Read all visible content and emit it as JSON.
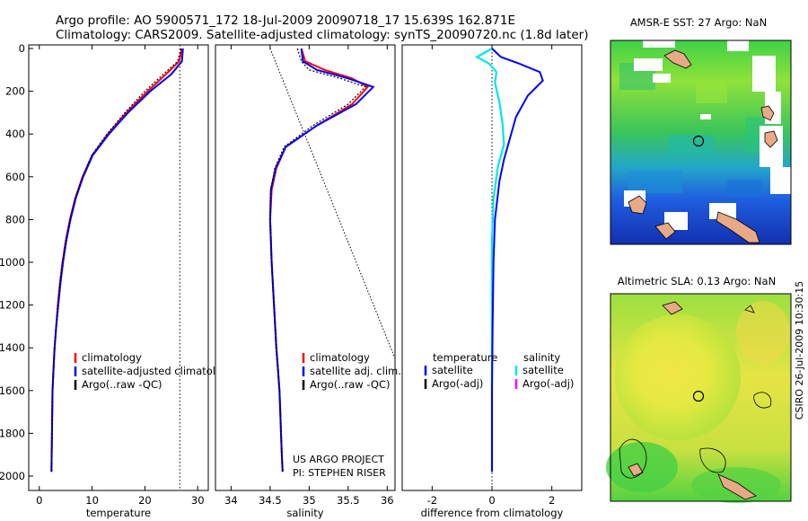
{
  "title_line1": "Argo profile: AO 5900571_172 18-Jul-2009 20090718_17 15.639S 162.871E",
  "title_line2": "Climatology: CARS2009. Satellite-adjusted climatology: synTS_20090720.nc (1.8d later)",
  "credit_project": "US ARGO PROJECT",
  "credit_pi": "PI: STEPHEN RISER",
  "side_stamp": "CSIRO 26-Jul-2009 10:30:15",
  "colors": {
    "climatology": "#ff0000",
    "satellite": "#0000ff",
    "argo": "#000000",
    "temp_diff": "#0000ff",
    "sal_diff": "#00e5ee",
    "argo_adj": "#ff00ff"
  },
  "chart_data": [
    {
      "type": "line",
      "xlabel": "temperature",
      "xlim": [
        -2,
        32
      ],
      "ylim": [
        0,
        2000
      ],
      "y_reversed": true,
      "xticks": [
        0,
        10,
        20,
        30
      ],
      "yticks": [
        0,
        200,
        400,
        600,
        800,
        1000,
        1200,
        1400,
        1600,
        1800,
        2000
      ],
      "reference_line_x": 26.6,
      "legend": [
        "climatology",
        "satellite-adjusted climatology",
        "Argo(..raw -QC)"
      ],
      "series": [
        {
          "name": "climatology",
          "x": [
            27.0,
            26.5,
            24.0,
            20.5,
            16.5,
            13.0,
            10.0,
            8.2,
            6.8,
            5.8,
            5.0,
            4.4,
            3.9,
            3.5,
            3.2,
            2.9,
            2.7,
            2.5,
            2.4,
            2.3
          ],
          "y": [
            0,
            60,
            120,
            200,
            300,
            400,
            500,
            600,
            700,
            800,
            900,
            1000,
            1100,
            1200,
            1300,
            1400,
            1500,
            1600,
            1800,
            1980
          ]
        },
        {
          "name": "satellite-adjusted climatology",
          "x": [
            27.2,
            27.0,
            25.0,
            21.0,
            16.8,
            13.2,
            10.1,
            8.3,
            6.9,
            5.9,
            5.1,
            4.5,
            4.0,
            3.6,
            3.2,
            2.9,
            2.7,
            2.5,
            2.4,
            2.3
          ],
          "y": [
            0,
            60,
            120,
            200,
            300,
            400,
            500,
            600,
            700,
            800,
            900,
            1000,
            1100,
            1200,
            1300,
            1400,
            1500,
            1600,
            1800,
            1980
          ]
        },
        {
          "name": "Argo(..raw -QC)",
          "x": [
            26.8,
            26.2,
            23.5,
            20.0,
            16.2,
            12.8,
            9.9,
            8.2,
            6.8,
            5.8,
            5.0,
            4.4,
            3.9,
            3.5,
            3.2,
            2.9,
            2.7,
            2.5,
            2.4,
            2.3
          ],
          "y": [
            0,
            60,
            120,
            200,
            300,
            400,
            500,
            600,
            700,
            800,
            900,
            1000,
            1100,
            1200,
            1300,
            1400,
            1500,
            1600,
            1800,
            1980
          ]
        }
      ]
    },
    {
      "type": "line",
      "xlabel": "salinity",
      "xlim": [
        33.8,
        36.1
      ],
      "ylim": [
        0,
        2000
      ],
      "y_reversed": true,
      "xticks": [
        34,
        34.5,
        35,
        35.5,
        36
      ],
      "legend": [
        "climatology",
        "satellite adj. clim.",
        "Argo(..raw -QC)"
      ],
      "diagonal_line": {
        "x": [
          34.5,
          36.1
        ],
        "y": [
          0,
          1450
        ]
      },
      "series": [
        {
          "name": "climatology",
          "x": [
            34.9,
            34.95,
            35.2,
            35.55,
            35.75,
            35.55,
            35.1,
            34.7,
            34.58,
            34.52,
            34.5,
            34.52,
            34.55,
            34.58,
            34.6,
            34.62,
            34.63,
            34.64,
            34.65,
            34.66
          ],
          "y": [
            0,
            60,
            100,
            140,
            180,
            260,
            360,
            460,
            560,
            660,
            800,
            1000,
            1200,
            1400,
            1500,
            1600,
            1700,
            1800,
            1900,
            1980
          ]
        },
        {
          "name": "satellite adj. clim.",
          "x": [
            34.9,
            34.92,
            35.1,
            35.5,
            35.82,
            35.6,
            35.1,
            34.7,
            34.57,
            34.51,
            34.5,
            34.52,
            34.55,
            34.58,
            34.6,
            34.62,
            34.63,
            34.64,
            34.65,
            34.66
          ],
          "y": [
            0,
            60,
            100,
            140,
            180,
            260,
            360,
            460,
            560,
            660,
            800,
            1000,
            1200,
            1400,
            1500,
            1600,
            1700,
            1800,
            1900,
            1980
          ]
        },
        {
          "name": "Argo(..raw -QC)",
          "x": [
            34.85,
            34.9,
            35.0,
            35.4,
            35.72,
            35.5,
            35.05,
            34.68,
            34.56,
            34.51,
            34.5,
            34.52,
            34.55,
            34.58,
            34.6,
            34.62,
            34.63,
            34.64,
            34.65,
            34.66
          ],
          "y": [
            0,
            60,
            100,
            140,
            180,
            260,
            360,
            460,
            560,
            660,
            800,
            1000,
            1200,
            1400,
            1500,
            1600,
            1700,
            1800,
            1900,
            1980
          ]
        }
      ]
    },
    {
      "type": "line",
      "xlabel": "difference from climatology",
      "xlim": [
        -3,
        3
      ],
      "ylim": [
        0,
        2000
      ],
      "y_reversed": true,
      "xticks": [
        -2,
        0,
        2
      ],
      "legend_temperature_header": "temperature",
      "legend_salinity_header": "salinity",
      "legend_temperature": [
        "satellite",
        "Argo(-adj)"
      ],
      "legend_salinity": [
        "satellite",
        "Argo(-adj)"
      ],
      "series": [
        {
          "name": "satellite",
          "group": "temperature",
          "x": [
            0.0,
            0.3,
            0.9,
            1.6,
            1.7,
            1.2,
            0.8,
            0.6,
            0.4,
            0.25,
            0.1,
            0.05,
            0.02,
            0.0,
            0.0,
            0.0
          ],
          "y": [
            0,
            40,
            70,
            110,
            150,
            220,
            320,
            420,
            520,
            620,
            800,
            1000,
            1300,
            1600,
            1800,
            1980
          ]
        },
        {
          "name": "satellite",
          "group": "salinity",
          "x": [
            0.0,
            -0.5,
            -0.1,
            0.15,
            0.1,
            0.25,
            0.35,
            0.4,
            0.2,
            0.05,
            0.0,
            0.0,
            0.0,
            0.0,
            0.0
          ],
          "y": [
            0,
            40,
            70,
            110,
            160,
            250,
            350,
            450,
            550,
            700,
            900,
            1200,
            1500,
            1800,
            1980
          ]
        }
      ]
    },
    {
      "type": "heatmap",
      "title": "AMSR-E SST: 27 Argo: NaN",
      "xlim": [
        157.5,
        168
      ],
      "ylim": [
        -21.5,
        -9.7
      ],
      "xticks": [
        158,
        160,
        162,
        164,
        166,
        168
      ],
      "yticks": [
        -10,
        -12,
        -14,
        -16,
        -18,
        -20
      ],
      "marker": {
        "lon": 162.871,
        "lat": -15.639
      }
    },
    {
      "type": "heatmap",
      "title": "Altimetric SLA: 0.13 Argo: NaN",
      "xlim": [
        157.5,
        168
      ],
      "ylim": [
        -21.5,
        -9.7
      ],
      "xticks": [
        158,
        160,
        162,
        164,
        166,
        168
      ],
      "yticks": [
        -10,
        -12,
        -14,
        -16,
        -18,
        -20
      ],
      "marker": {
        "lon": 162.871,
        "lat": -15.639
      }
    }
  ]
}
